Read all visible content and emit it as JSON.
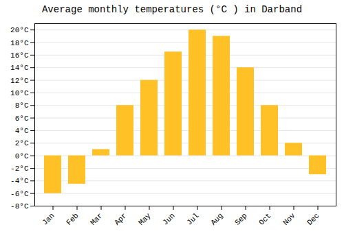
{
  "chart_data": {
    "type": "bar",
    "title": "Average monthly temperatures (°C ) in Darband",
    "categories": [
      "Jan",
      "Feb",
      "Mar",
      "Apr",
      "May",
      "Jun",
      "Jul",
      "Aug",
      "Sep",
      "Oct",
      "Nov",
      "Dec"
    ],
    "values": [
      -6,
      -4.5,
      1,
      8,
      12,
      16.5,
      20,
      19,
      14,
      8,
      2,
      -3
    ],
    "color": "#FFC125",
    "ylim": [
      -8,
      21
    ],
    "yticks": [
      {
        "value": -8,
        "label": "-8°C"
      },
      {
        "value": -6,
        "label": "-6°C"
      },
      {
        "value": -4,
        "label": "-4°C"
      },
      {
        "value": -2,
        "label": "-2°C"
      },
      {
        "value": 0,
        "label": "0°C"
      },
      {
        "value": 2,
        "label": "2°C"
      },
      {
        "value": 4,
        "label": "4°C"
      },
      {
        "value": 6,
        "label": "6°C"
      },
      {
        "value": 8,
        "label": "8°C"
      },
      {
        "value": 10,
        "label": "10°C"
      },
      {
        "value": 12,
        "label": "12°C"
      },
      {
        "value": 14,
        "label": "14°C"
      },
      {
        "value": 16,
        "label": "16°C"
      },
      {
        "value": 18,
        "label": "18°C"
      },
      {
        "value": 20,
        "label": "20°C"
      }
    ],
    "grid": true
  }
}
